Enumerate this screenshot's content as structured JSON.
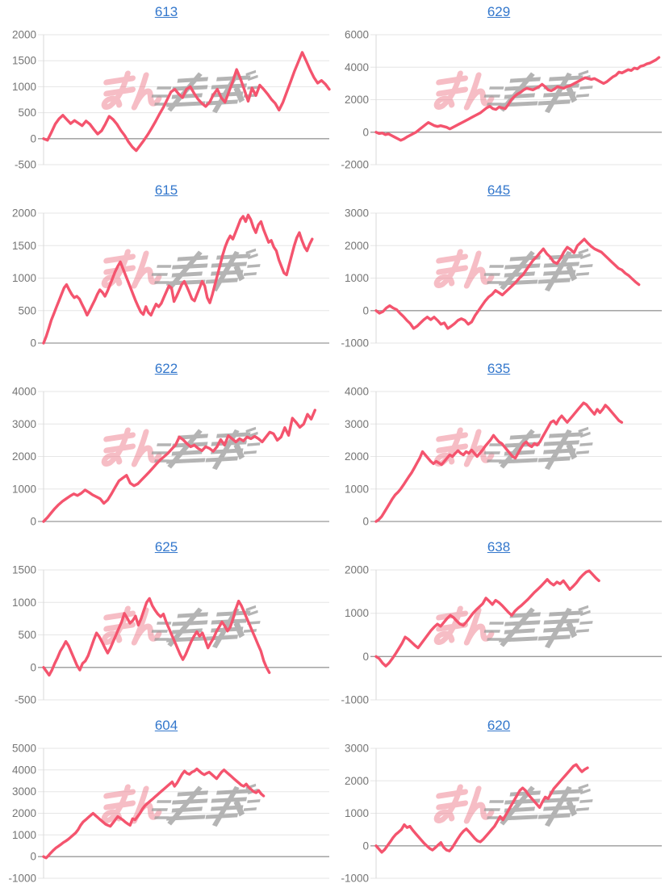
{
  "page": {
    "background": "#ffffff"
  },
  "styles": {
    "line_color": "#f4546e",
    "title_color": "#3377cc",
    "grid_color": "#e6e6e6",
    "zero_line_color": "#999999",
    "axis_line_color": "#d9d9d9",
    "label_color": "#757575",
    "watermark_pink": "#ee7d8d",
    "watermark_gray": "#9c9c9c"
  },
  "watermark": {
    "text_pink": "みん",
    "text_gray": "レポ"
  },
  "chart_data": [
    {
      "type": "line",
      "title": "613",
      "xlabel": "",
      "ylabel": "",
      "legend": "none",
      "grid": true,
      "ylim": [
        -500,
        2000
      ],
      "ytick_step": 500,
      "x_span": 1.0,
      "values": [
        0,
        -30,
        120,
        280,
        380,
        450,
        370,
        290,
        350,
        300,
        250,
        340,
        280,
        180,
        90,
        150,
        280,
        430,
        370,
        280,
        160,
        60,
        -60,
        -160,
        -230,
        -130,
        -30,
        80,
        200,
        330,
        470,
        600,
        750,
        900,
        950,
        860,
        790,
        950,
        1000,
        870,
        760,
        680,
        620,
        700,
        850,
        950,
        790,
        700,
        900,
        1100,
        1330,
        1150,
        940,
        720,
        975,
        830,
        1030,
        950,
        860,
        760,
        680,
        550,
        700,
        900,
        1100,
        1300,
        1480,
        1660,
        1500,
        1330,
        1180,
        1070,
        1120,
        1050,
        950
      ]
    },
    {
      "type": "line",
      "title": "629",
      "xlabel": "",
      "ylabel": "",
      "legend": "none",
      "grid": true,
      "ylim": [
        -2000,
        6000
      ],
      "ytick_step": 2000,
      "x_span": 0.99,
      "values": [
        0,
        -80,
        -50,
        -150,
        -100,
        -200,
        -300,
        -400,
        -500,
        -420,
        -300,
        -200,
        -100,
        0,
        150,
        300,
        450,
        600,
        500,
        400,
        350,
        400,
        350,
        300,
        200,
        300,
        400,
        500,
        600,
        700,
        800,
        900,
        1000,
        1100,
        1200,
        1350,
        1500,
        1600,
        1450,
        1400,
        1550,
        1500,
        1450,
        1700,
        2000,
        2200,
        2350,
        2450,
        2600,
        2700,
        2650,
        2600,
        2700,
        2800,
        2950,
        2800,
        2600,
        2550,
        2650,
        2800,
        2750,
        2700,
        2800,
        2850,
        2950,
        3050,
        3150,
        3250,
        3350,
        3300,
        3250,
        3300,
        3200,
        3100,
        3000,
        3100,
        3250,
        3400,
        3500,
        3700,
        3650,
        3750,
        3850,
        3800,
        3950,
        3900,
        4050,
        4100,
        4200,
        4250,
        4350,
        4450,
        4600
      ]
    },
    {
      "type": "line",
      "title": "615",
      "xlabel": "",
      "ylabel": "",
      "legend": "none",
      "grid": true,
      "ylim": [
        0,
        2000
      ],
      "ytick_step": 500,
      "x_span": 0.94,
      "values": [
        0,
        100,
        220,
        350,
        450,
        550,
        650,
        750,
        850,
        900,
        820,
        750,
        700,
        720,
        680,
        600,
        520,
        430,
        500,
        580,
        660,
        750,
        820,
        780,
        720,
        800,
        900,
        1000,
        1100,
        1180,
        1250,
        1150,
        1050,
        950,
        850,
        750,
        650,
        560,
        480,
        440,
        560,
        470,
        430,
        520,
        600,
        560,
        610,
        700,
        790,
        880,
        850,
        640,
        720,
        810,
        900,
        950,
        870,
        780,
        680,
        650,
        750,
        850,
        950,
        880,
        700,
        620,
        750,
        900,
        1050,
        1200,
        1350,
        1480,
        1580,
        1650,
        1600,
        1700,
        1800,
        1900,
        1950,
        1870,
        1970,
        1900,
        1780,
        1700,
        1820,
        1870,
        1750,
        1650,
        1550,
        1580,
        1480,
        1420,
        1280,
        1180,
        1080,
        1050,
        1200,
        1350,
        1500,
        1620,
        1700,
        1580,
        1480,
        1420,
        1520,
        1600
      ]
    },
    {
      "type": "line",
      "title": "645",
      "xlabel": "",
      "ylabel": "",
      "legend": "none",
      "grid": true,
      "ylim": [
        -1000,
        3000
      ],
      "ytick_step": 1000,
      "x_span": 0.92,
      "values": [
        0,
        -80,
        -30,
        80,
        150,
        80,
        30,
        -80,
        -180,
        -300,
        -400,
        -550,
        -480,
        -380,
        -280,
        -200,
        -280,
        -200,
        -300,
        -420,
        -380,
        -550,
        -480,
        -400,
        -300,
        -250,
        -300,
        -420,
        -350,
        -150,
        0,
        150,
        300,
        420,
        500,
        620,
        550,
        480,
        580,
        680,
        780,
        880,
        1000,
        1100,
        1250,
        1400,
        1550,
        1650,
        1780,
        1900,
        1750,
        1650,
        1500,
        1450,
        1600,
        1800,
        1950,
        1880,
        1780,
        2000,
        2100,
        2200,
        2080,
        1980,
        1900,
        1850,
        1800,
        1700,
        1600,
        1500,
        1400,
        1300,
        1250,
        1150,
        1080,
        980,
        880,
        800
      ]
    },
    {
      "type": "line",
      "title": "622",
      "xlabel": "",
      "ylabel": "",
      "legend": "none",
      "grid": true,
      "ylim": [
        0,
        4000
      ],
      "ytick_step": 1000,
      "x_span": 0.95,
      "values": [
        0,
        120,
        260,
        400,
        520,
        620,
        700,
        780,
        850,
        800,
        870,
        970,
        900,
        820,
        760,
        700,
        560,
        660,
        850,
        1050,
        1250,
        1340,
        1420,
        1180,
        1100,
        1160,
        1280,
        1400,
        1520,
        1650,
        1780,
        1900,
        2000,
        2100,
        2230,
        2350,
        2600,
        2520,
        2400,
        2300,
        2350,
        2250,
        2180,
        2300,
        2250,
        2160,
        2300,
        2520,
        2350,
        2640,
        2550,
        2450,
        2550,
        2480,
        2600,
        2550,
        2620,
        2550,
        2450,
        2600,
        2750,
        2700,
        2500,
        2600,
        2890,
        2650,
        3180,
        3050,
        2900,
        3000,
        3300,
        3150,
        3425
      ]
    },
    {
      "type": "line",
      "title": "635",
      "xlabel": "",
      "ylabel": "",
      "legend": "none",
      "grid": true,
      "ylim": [
        0,
        4000
      ],
      "ytick_step": 1000,
      "x_span": 0.86,
      "values": [
        0,
        60,
        150,
        280,
        420,
        560,
        700,
        820,
        900,
        1000,
        1120,
        1250,
        1380,
        1500,
        1650,
        1800,
        1950,
        2150,
        2050,
        1950,
        1850,
        1780,
        1850,
        1800,
        1750,
        1850,
        1950,
        2050,
        2000,
        2100,
        2180,
        2100,
        2050,
        2150,
        2100,
        2200,
        2100,
        2000,
        2100,
        2200,
        2320,
        2420,
        2520,
        2650,
        2550,
        2450,
        2400,
        2300,
        2200,
        2100,
        2000,
        1950,
        2100,
        2250,
        2380,
        2450,
        2350,
        2300,
        2400,
        2350,
        2450,
        2600,
        2750,
        2900,
        3050,
        3100,
        3000,
        3150,
        3250,
        3150,
        3050,
        3150,
        3250,
        3350,
        3450,
        3550,
        3650,
        3600,
        3500,
        3400,
        3300,
        3450,
        3350,
        3450,
        3580,
        3500,
        3400,
        3300,
        3200,
        3100,
        3050
      ]
    },
    {
      "type": "line",
      "title": "625",
      "xlabel": "",
      "ylabel": "",
      "legend": "none",
      "grid": true,
      "ylim": [
        -500,
        1500
      ],
      "ytick_step": 500,
      "x_span": 0.79,
      "values": [
        0,
        -60,
        -120,
        -40,
        60,
        150,
        250,
        320,
        400,
        330,
        230,
        130,
        30,
        -40,
        60,
        100,
        180,
        300,
        420,
        530,
        470,
        390,
        300,
        220,
        300,
        400,
        500,
        600,
        700,
        830,
        760,
        680,
        720,
        790,
        650,
        750,
        880,
        1000,
        1060,
        950,
        880,
        820,
        780,
        820,
        700,
        600,
        500,
        400,
        300,
        200,
        120,
        200,
        300,
        400,
        480,
        550,
        480,
        530,
        420,
        300,
        380,
        450,
        550,
        620,
        700,
        640,
        560,
        620,
        750,
        900,
        1020,
        950,
        850,
        750,
        650,
        550,
        450,
        350,
        250,
        100,
        0,
        -80
      ]
    },
    {
      "type": "line",
      "title": "638",
      "xlabel": "",
      "ylabel": "",
      "legend": "none",
      "grid": true,
      "ylim": [
        -1000,
        2000
      ],
      "ytick_step": 1000,
      "x_span": 0.78,
      "values": [
        0,
        -50,
        -150,
        -220,
        -150,
        -50,
        60,
        180,
        300,
        450,
        400,
        330,
        260,
        200,
        300,
        400,
        500,
        600,
        680,
        750,
        700,
        790,
        880,
        950,
        900,
        820,
        750,
        720,
        800,
        900,
        1000,
        1080,
        1150,
        1220,
        1350,
        1280,
        1200,
        1300,
        1250,
        1180,
        1100,
        1020,
        950,
        1050,
        1120,
        1180,
        1250,
        1320,
        1400,
        1480,
        1550,
        1620,
        1700,
        1780,
        1700,
        1650,
        1720,
        1680,
        1750,
        1650,
        1550,
        1620,
        1700,
        1800,
        1880,
        1950,
        1980,
        1900,
        1820,
        1750
      ]
    },
    {
      "type": "line",
      "title": "604",
      "xlabel": "",
      "ylabel": "",
      "legend": "none",
      "grid": true,
      "ylim": [
        -1000,
        5000
      ],
      "ytick_step": 1000,
      "x_span": 0.77,
      "values": [
        0,
        -60,
        50,
        180,
        300,
        400,
        480,
        560,
        650,
        720,
        800,
        900,
        1000,
        1100,
        1250,
        1450,
        1600,
        1700,
        1800,
        1900,
        2000,
        1900,
        1800,
        1700,
        1600,
        1500,
        1450,
        1400,
        1550,
        1700,
        1850,
        1780,
        1700,
        1600,
        1520,
        1450,
        1750,
        1700,
        1850,
        2000,
        2200,
        2350,
        2450,
        2550,
        2650,
        2750,
        2850,
        2950,
        3050,
        3150,
        3250,
        3350,
        3450,
        3250,
        3400,
        3600,
        3800,
        3950,
        3850,
        3800,
        3900,
        3950,
        4050,
        3950,
        3850,
        3780,
        3850,
        3900,
        3800,
        3700,
        3600,
        3750,
        3900,
        4000,
        3900,
        3800,
        3700,
        3600,
        3500,
        3400,
        3300,
        3250,
        3350,
        3200,
        3100,
        3000,
        2950,
        3050,
        2900,
        2800
      ]
    },
    {
      "type": "line",
      "title": "620",
      "xlabel": "",
      "ylabel": "",
      "legend": "none",
      "grid": true,
      "ylim": [
        -1000,
        3000
      ],
      "ytick_step": 1000,
      "x_span": 0.74,
      "values": [
        0,
        -100,
        -200,
        -120,
        0,
        120,
        250,
        350,
        420,
        500,
        650,
        560,
        600,
        480,
        380,
        280,
        180,
        80,
        0,
        -80,
        -130,
        -60,
        20,
        100,
        -50,
        -130,
        -160,
        -60,
        80,
        220,
        350,
        450,
        520,
        430,
        330,
        230,
        150,
        120,
        200,
        300,
        400,
        500,
        600,
        750,
        900,
        800,
        950,
        1100,
        1250,
        1400,
        1550,
        1700,
        1780,
        1700,
        1580,
        1480,
        1380,
        1280,
        1180,
        1350,
        1500,
        1450,
        1600,
        1750,
        1850,
        1950,
        2050,
        2150,
        2250,
        2350,
        2450,
        2500,
        2380,
        2280,
        2350,
        2400
      ]
    }
  ]
}
